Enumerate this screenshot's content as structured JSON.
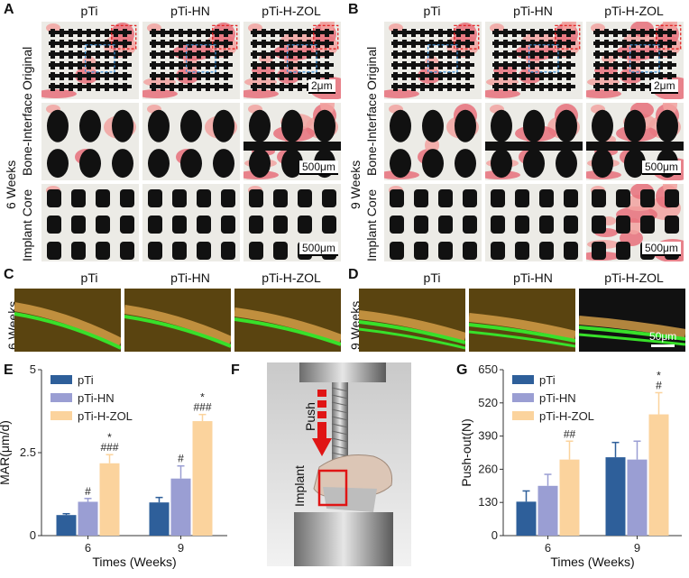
{
  "panels": {
    "A": {
      "label": "A",
      "cols": [
        "pTi",
        "pTi-HN",
        "pTi-H-ZOL"
      ],
      "time": "6 Weeks",
      "rows": [
        "Original",
        "Bone-Interface",
        "Implant Core"
      ],
      "scales": [
        "2μm",
        "500μm",
        "500μm"
      ]
    },
    "B": {
      "label": "B",
      "cols": [
        "pTi",
        "pTi-HN",
        "pTi-H-ZOL"
      ],
      "time": "9 Weeks",
      "rows": [
        "Original",
        "Bone-Interface",
        "Implant Core"
      ],
      "scales": [
        "2μm",
        "500μm",
        "500μm"
      ]
    },
    "C": {
      "label": "C",
      "cols": [
        "pTi",
        "pTi-HN",
        "pTi-H-ZOL"
      ],
      "time": "6 Weeks"
    },
    "D": {
      "label": "D",
      "cols": [
        "pTi",
        "pTi-HN",
        "pTi-H-ZOL"
      ],
      "time": "9 Weeks",
      "scale": "50μm"
    },
    "E": {
      "label": "E"
    },
    "F": {
      "label": "F",
      "push": "Push",
      "implant": "Implant"
    },
    "G": {
      "label": "G"
    }
  },
  "colors": {
    "pTi": "#2e5f9a",
    "pTi-HN": "#9a9ed3",
    "pTi-H-ZOL": "#fbd39d",
    "arrow": "#e01515"
  },
  "chart_data": [
    {
      "id": "E",
      "type": "bar",
      "categories": [
        "6",
        "9"
      ],
      "xlabel": "Times (Weeks)",
      "ylabel": "MAR(μm/d)",
      "ylim": [
        0,
        5
      ],
      "yticks": [
        "0",
        "2.5",
        "5"
      ],
      "legend": [
        "pTi",
        "pTi-HN",
        "pTi-H-ZOL"
      ],
      "legend_position": "top-left",
      "series": [
        {
          "name": "pTi",
          "values": [
            0.62,
            1.0
          ],
          "errors": [
            0.04,
            0.15
          ],
          "annotations": [
            "",
            ""
          ]
        },
        {
          "name": "pTi-HN",
          "values": [
            1.02,
            1.72
          ],
          "errors": [
            0.1,
            0.38
          ],
          "annotations": [
            "#",
            "#"
          ]
        },
        {
          "name": "pTi-H-ZOL",
          "values": [
            2.18,
            3.45
          ],
          "errors": [
            0.26,
            0.2
          ],
          "annotations": [
            "*\n###",
            "*\n###"
          ]
        }
      ]
    },
    {
      "id": "G",
      "type": "bar",
      "categories": [
        "6",
        "9"
      ],
      "xlabel": "Times (Weeks)",
      "ylabel": "Push-out(N)",
      "ylim": [
        0,
        650
      ],
      "yticks": [
        "0",
        "130",
        "260",
        "390",
        "520",
        "650"
      ],
      "legend": [
        "pTi",
        "pTi-HN",
        "pTi-H-ZOL"
      ],
      "legend_position": "top-left",
      "series": [
        {
          "name": "pTi",
          "values": [
            133,
            307
          ],
          "errors": [
            42,
            58
          ],
          "annotations": [
            "",
            ""
          ]
        },
        {
          "name": "pTi-HN",
          "values": [
            195,
            298
          ],
          "errors": [
            45,
            72
          ],
          "annotations": [
            "",
            ""
          ]
        },
        {
          "name": "pTi-H-ZOL",
          "values": [
            298,
            475
          ],
          "errors": [
            72,
            85
          ],
          "annotations": [
            "##",
            "*\n#"
          ]
        }
      ]
    }
  ]
}
